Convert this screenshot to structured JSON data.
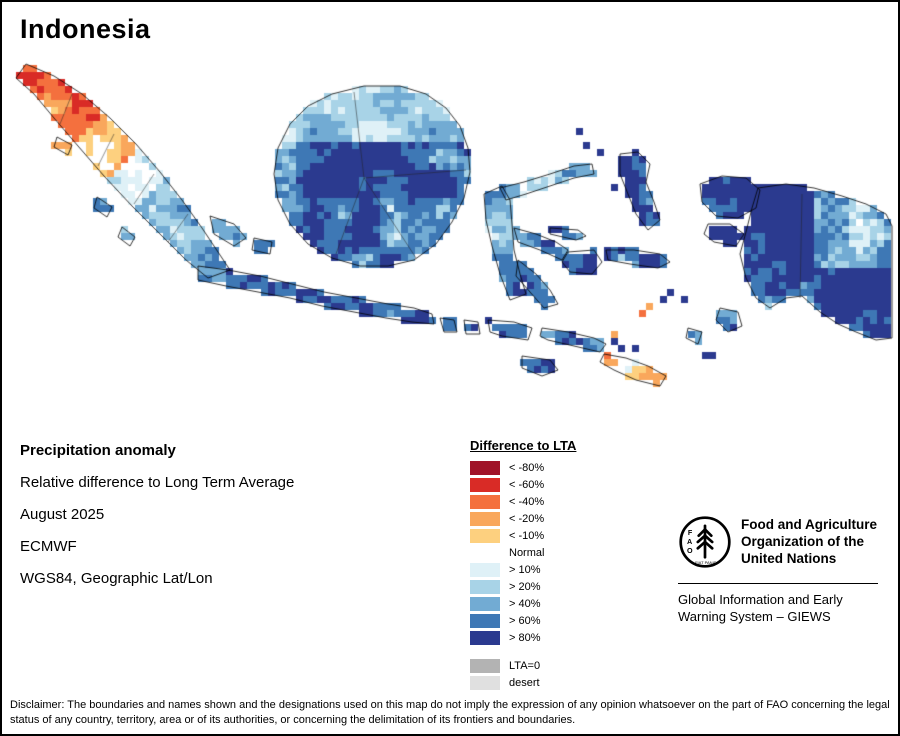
{
  "title": "Indonesia",
  "info": {
    "heading": "Precipitation anomaly",
    "description": "Relative difference to Long Term Average",
    "period": "August 2025",
    "source": "ECMWF",
    "projection": "WGS84, Geographic Lat/Lon"
  },
  "legend": {
    "heading": "Difference to LTA",
    "items": [
      {
        "label": "< -80%",
        "color": "#a01328"
      },
      {
        "label": "< -60%",
        "color": "#d92b26"
      },
      {
        "label": "< -40%",
        "color": "#f4703e"
      },
      {
        "label": "< -20%",
        "color": "#f9a75c"
      },
      {
        "label": "< -10%",
        "color": "#fdd07f"
      },
      {
        "label": "Normal",
        "color": "#ffffff"
      },
      {
        "label": "> 10%",
        "color": "#dff1f7"
      },
      {
        "label": "> 20%",
        "color": "#a8d3e7"
      },
      {
        "label": "> 40%",
        "color": "#72abd3"
      },
      {
        "label": "> 60%",
        "color": "#3e78b5"
      },
      {
        "label": "> 80%",
        "color": "#2b3a8f"
      }
    ],
    "extra_items": [
      {
        "label": "LTA=0",
        "color": "#b3b3b3"
      },
      {
        "label": "desert",
        "color": "#e0e0e0"
      }
    ]
  },
  "org": {
    "logo_text": "FAO",
    "logo_motto": "FIAT PANIS",
    "name": "Food and Agriculture Organization of the United Nations",
    "subtitle": "Global Information and Early Warning System – GIEWS"
  },
  "disclaimer": "Disclaimer: The boundaries and names shown and the designations used on this map do not imply the expression of any opinion whatsoever on the part of FAO concerning the legal status of any country, territory, area or of its authorities, or concerning the delimitation of its frontiers and boundaries."
}
